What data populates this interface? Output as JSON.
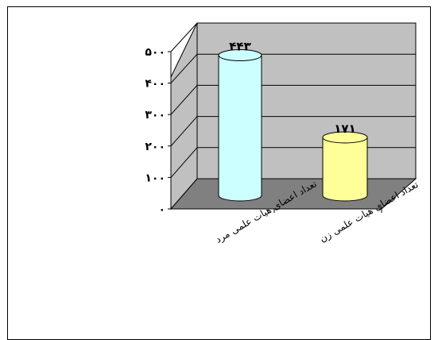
{
  "chart_data": {
    "type": "bar",
    "style": "3d-cylinder",
    "categories": [
      "تعداد اعضای هیات علمی مرد",
      "تعداد اعضای هیات علمی زن"
    ],
    "values": [
      443,
      171
    ],
    "value_labels": [
      "۴۴۳",
      "۱۷۱"
    ],
    "y_ticks": [
      0,
      100,
      200,
      300,
      400,
      500
    ],
    "y_tick_labels": [
      "۰",
      "۱۰۰",
      "۲۰۰",
      "۳۰۰",
      "۴۰۰",
      "۵۰۰"
    ],
    "ylim": [
      0,
      500
    ],
    "grid": true,
    "legend": "none",
    "colors": {
      "wall": "#c0c0c0",
      "floor": "#808080",
      "bar1": "#ccffff",
      "bar2": "#ffff99",
      "grid": "#000000"
    }
  }
}
